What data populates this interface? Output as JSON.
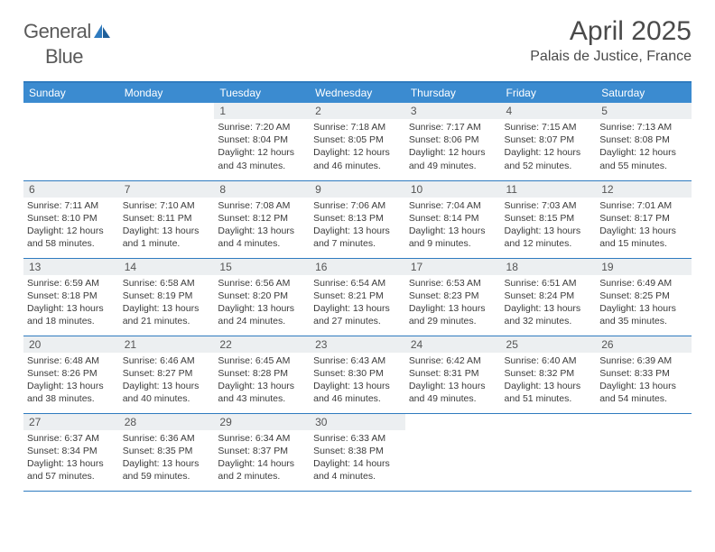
{
  "brand": {
    "part1": "General",
    "part2": "Blue"
  },
  "title": "April 2025",
  "location": "Palais de Justice, France",
  "colors": {
    "header_bg": "#3b8bd0",
    "border": "#2f7bbf",
    "daynum_bg": "#eceff1",
    "text": "#333333",
    "logo_gray": "#5a5a5a"
  },
  "day_headers": [
    "Sunday",
    "Monday",
    "Tuesday",
    "Wednesday",
    "Thursday",
    "Friday",
    "Saturday"
  ],
  "weeks": [
    [
      {
        "n": "",
        "sr": "",
        "ss": "",
        "dl": ""
      },
      {
        "n": "",
        "sr": "",
        "ss": "",
        "dl": ""
      },
      {
        "n": "1",
        "sr": "Sunrise: 7:20 AM",
        "ss": "Sunset: 8:04 PM",
        "dl": "Daylight: 12 hours and 43 minutes."
      },
      {
        "n": "2",
        "sr": "Sunrise: 7:18 AM",
        "ss": "Sunset: 8:05 PM",
        "dl": "Daylight: 12 hours and 46 minutes."
      },
      {
        "n": "3",
        "sr": "Sunrise: 7:17 AM",
        "ss": "Sunset: 8:06 PM",
        "dl": "Daylight: 12 hours and 49 minutes."
      },
      {
        "n": "4",
        "sr": "Sunrise: 7:15 AM",
        "ss": "Sunset: 8:07 PM",
        "dl": "Daylight: 12 hours and 52 minutes."
      },
      {
        "n": "5",
        "sr": "Sunrise: 7:13 AM",
        "ss": "Sunset: 8:08 PM",
        "dl": "Daylight: 12 hours and 55 minutes."
      }
    ],
    [
      {
        "n": "6",
        "sr": "Sunrise: 7:11 AM",
        "ss": "Sunset: 8:10 PM",
        "dl": "Daylight: 12 hours and 58 minutes."
      },
      {
        "n": "7",
        "sr": "Sunrise: 7:10 AM",
        "ss": "Sunset: 8:11 PM",
        "dl": "Daylight: 13 hours and 1 minute."
      },
      {
        "n": "8",
        "sr": "Sunrise: 7:08 AM",
        "ss": "Sunset: 8:12 PM",
        "dl": "Daylight: 13 hours and 4 minutes."
      },
      {
        "n": "9",
        "sr": "Sunrise: 7:06 AM",
        "ss": "Sunset: 8:13 PM",
        "dl": "Daylight: 13 hours and 7 minutes."
      },
      {
        "n": "10",
        "sr": "Sunrise: 7:04 AM",
        "ss": "Sunset: 8:14 PM",
        "dl": "Daylight: 13 hours and 9 minutes."
      },
      {
        "n": "11",
        "sr": "Sunrise: 7:03 AM",
        "ss": "Sunset: 8:15 PM",
        "dl": "Daylight: 13 hours and 12 minutes."
      },
      {
        "n": "12",
        "sr": "Sunrise: 7:01 AM",
        "ss": "Sunset: 8:17 PM",
        "dl": "Daylight: 13 hours and 15 minutes."
      }
    ],
    [
      {
        "n": "13",
        "sr": "Sunrise: 6:59 AM",
        "ss": "Sunset: 8:18 PM",
        "dl": "Daylight: 13 hours and 18 minutes."
      },
      {
        "n": "14",
        "sr": "Sunrise: 6:58 AM",
        "ss": "Sunset: 8:19 PM",
        "dl": "Daylight: 13 hours and 21 minutes."
      },
      {
        "n": "15",
        "sr": "Sunrise: 6:56 AM",
        "ss": "Sunset: 8:20 PM",
        "dl": "Daylight: 13 hours and 24 minutes."
      },
      {
        "n": "16",
        "sr": "Sunrise: 6:54 AM",
        "ss": "Sunset: 8:21 PM",
        "dl": "Daylight: 13 hours and 27 minutes."
      },
      {
        "n": "17",
        "sr": "Sunrise: 6:53 AM",
        "ss": "Sunset: 8:23 PM",
        "dl": "Daylight: 13 hours and 29 minutes."
      },
      {
        "n": "18",
        "sr": "Sunrise: 6:51 AM",
        "ss": "Sunset: 8:24 PM",
        "dl": "Daylight: 13 hours and 32 minutes."
      },
      {
        "n": "19",
        "sr": "Sunrise: 6:49 AM",
        "ss": "Sunset: 8:25 PM",
        "dl": "Daylight: 13 hours and 35 minutes."
      }
    ],
    [
      {
        "n": "20",
        "sr": "Sunrise: 6:48 AM",
        "ss": "Sunset: 8:26 PM",
        "dl": "Daylight: 13 hours and 38 minutes."
      },
      {
        "n": "21",
        "sr": "Sunrise: 6:46 AM",
        "ss": "Sunset: 8:27 PM",
        "dl": "Daylight: 13 hours and 40 minutes."
      },
      {
        "n": "22",
        "sr": "Sunrise: 6:45 AM",
        "ss": "Sunset: 8:28 PM",
        "dl": "Daylight: 13 hours and 43 minutes."
      },
      {
        "n": "23",
        "sr": "Sunrise: 6:43 AM",
        "ss": "Sunset: 8:30 PM",
        "dl": "Daylight: 13 hours and 46 minutes."
      },
      {
        "n": "24",
        "sr": "Sunrise: 6:42 AM",
        "ss": "Sunset: 8:31 PM",
        "dl": "Daylight: 13 hours and 49 minutes."
      },
      {
        "n": "25",
        "sr": "Sunrise: 6:40 AM",
        "ss": "Sunset: 8:32 PM",
        "dl": "Daylight: 13 hours and 51 minutes."
      },
      {
        "n": "26",
        "sr": "Sunrise: 6:39 AM",
        "ss": "Sunset: 8:33 PM",
        "dl": "Daylight: 13 hours and 54 minutes."
      }
    ],
    [
      {
        "n": "27",
        "sr": "Sunrise: 6:37 AM",
        "ss": "Sunset: 8:34 PM",
        "dl": "Daylight: 13 hours and 57 minutes."
      },
      {
        "n": "28",
        "sr": "Sunrise: 6:36 AM",
        "ss": "Sunset: 8:35 PM",
        "dl": "Daylight: 13 hours and 59 minutes."
      },
      {
        "n": "29",
        "sr": "Sunrise: 6:34 AM",
        "ss": "Sunset: 8:37 PM",
        "dl": "Daylight: 14 hours and 2 minutes."
      },
      {
        "n": "30",
        "sr": "Sunrise: 6:33 AM",
        "ss": "Sunset: 8:38 PM",
        "dl": "Daylight: 14 hours and 4 minutes."
      },
      {
        "n": "",
        "sr": "",
        "ss": "",
        "dl": ""
      },
      {
        "n": "",
        "sr": "",
        "ss": "",
        "dl": ""
      },
      {
        "n": "",
        "sr": "",
        "ss": "",
        "dl": ""
      }
    ]
  ]
}
